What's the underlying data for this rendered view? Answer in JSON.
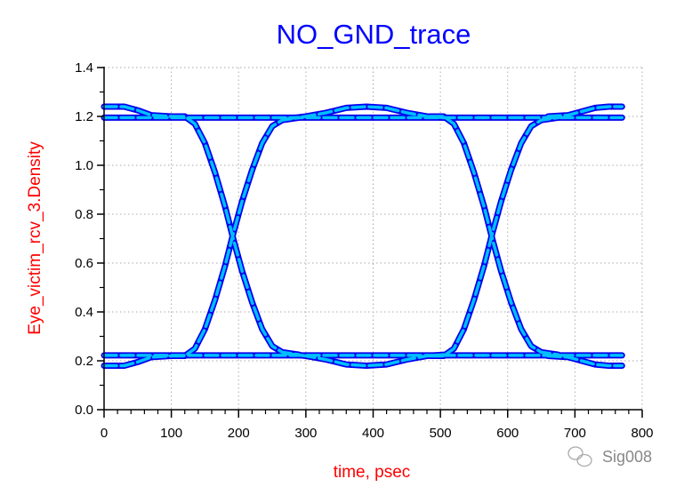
{
  "chart_data": {
    "type": "line",
    "title": "NO_GND_trace",
    "xlabel": "time, psec",
    "ylabel": "Eye_victim_rcv_3.Density",
    "xlim": [
      0,
      800
    ],
    "ylim": [
      0,
      1.4
    ],
    "x_ticks": [
      "0",
      "100",
      "200",
      "300",
      "400",
      "500",
      "600",
      "700",
      "800"
    ],
    "y_ticks": [
      "0.0",
      "0.2",
      "0.4",
      "0.6",
      "0.8",
      "1.0",
      "1.2",
      "1.4"
    ],
    "grid": true,
    "colors": {
      "density_high": "#0000ee",
      "density_low": "#00bfff",
      "title": "#0000ff",
      "axis_title": "#ff0000"
    },
    "traces": [
      {
        "name": "high-level",
        "points": [
          [
            0,
            1.195
          ],
          [
            770,
            1.195
          ]
        ]
      },
      {
        "name": "low-level",
        "points": [
          [
            0,
            0.222
          ],
          [
            770,
            0.222
          ]
        ]
      },
      {
        "name": "overshoot-left",
        "points": [
          [
            0,
            1.24
          ],
          [
            30,
            1.24
          ],
          [
            50,
            1.225
          ],
          [
            70,
            1.205
          ],
          [
            100,
            1.2
          ]
        ]
      },
      {
        "name": "undershoot-left",
        "points": [
          [
            0,
            0.18
          ],
          [
            30,
            0.18
          ],
          [
            50,
            0.195
          ],
          [
            70,
            0.215
          ],
          [
            100,
            0.22
          ]
        ]
      },
      {
        "name": "overshoot-mid",
        "points": [
          [
            270,
            1.19
          ],
          [
            300,
            1.2
          ],
          [
            330,
            1.215
          ],
          [
            360,
            1.235
          ],
          [
            390,
            1.24
          ],
          [
            420,
            1.235
          ],
          [
            450,
            1.215
          ],
          [
            480,
            1.2
          ],
          [
            505,
            1.195
          ]
        ]
      },
      {
        "name": "undershoot-mid",
        "points": [
          [
            270,
            0.23
          ],
          [
            300,
            0.22
          ],
          [
            330,
            0.205
          ],
          [
            360,
            0.185
          ],
          [
            390,
            0.18
          ],
          [
            420,
            0.185
          ],
          [
            450,
            0.205
          ],
          [
            480,
            0.22
          ],
          [
            505,
            0.225
          ]
        ]
      },
      {
        "name": "overshoot-right",
        "points": [
          [
            660,
            1.2
          ],
          [
            690,
            1.205
          ],
          [
            710,
            1.22
          ],
          [
            730,
            1.235
          ],
          [
            750,
            1.24
          ],
          [
            770,
            1.24
          ]
        ]
      },
      {
        "name": "undershoot-right",
        "points": [
          [
            660,
            0.22
          ],
          [
            690,
            0.215
          ],
          [
            710,
            0.2
          ],
          [
            730,
            0.185
          ],
          [
            750,
            0.18
          ],
          [
            770,
            0.18
          ]
        ]
      },
      {
        "name": "falling-edge-1",
        "points": [
          [
            100,
            1.2
          ],
          [
            120,
            1.2
          ],
          [
            135,
            1.17
          ],
          [
            150,
            1.09
          ],
          [
            165,
            0.97
          ],
          [
            180,
            0.83
          ],
          [
            192,
            0.7
          ],
          [
            205,
            0.57
          ],
          [
            220,
            0.44
          ],
          [
            235,
            0.33
          ],
          [
            250,
            0.26
          ],
          [
            265,
            0.235
          ],
          [
            290,
            0.225
          ]
        ]
      },
      {
        "name": "rising-edge-1",
        "points": [
          [
            100,
            0.22
          ],
          [
            120,
            0.22
          ],
          [
            135,
            0.25
          ],
          [
            150,
            0.33
          ],
          [
            165,
            0.45
          ],
          [
            180,
            0.59
          ],
          [
            192,
            0.72
          ],
          [
            205,
            0.85
          ],
          [
            220,
            0.98
          ],
          [
            235,
            1.09
          ],
          [
            250,
            1.16
          ],
          [
            265,
            1.185
          ],
          [
            290,
            1.195
          ]
        ]
      },
      {
        "name": "falling-edge-2",
        "points": [
          [
            485,
            1.2
          ],
          [
            505,
            1.2
          ],
          [
            520,
            1.17
          ],
          [
            535,
            1.09
          ],
          [
            550,
            0.97
          ],
          [
            565,
            0.83
          ],
          [
            577,
            0.7
          ],
          [
            590,
            0.57
          ],
          [
            605,
            0.44
          ],
          [
            620,
            0.33
          ],
          [
            635,
            0.26
          ],
          [
            650,
            0.235
          ],
          [
            675,
            0.225
          ]
        ]
      },
      {
        "name": "rising-edge-2",
        "points": [
          [
            485,
            0.22
          ],
          [
            505,
            0.22
          ],
          [
            520,
            0.25
          ],
          [
            535,
            0.33
          ],
          [
            550,
            0.45
          ],
          [
            565,
            0.59
          ],
          [
            577,
            0.72
          ],
          [
            590,
            0.85
          ],
          [
            605,
            0.98
          ],
          [
            620,
            1.09
          ],
          [
            635,
            1.16
          ],
          [
            650,
            1.185
          ],
          [
            675,
            1.195
          ]
        ]
      }
    ]
  },
  "watermark": {
    "text": "Sig008"
  }
}
